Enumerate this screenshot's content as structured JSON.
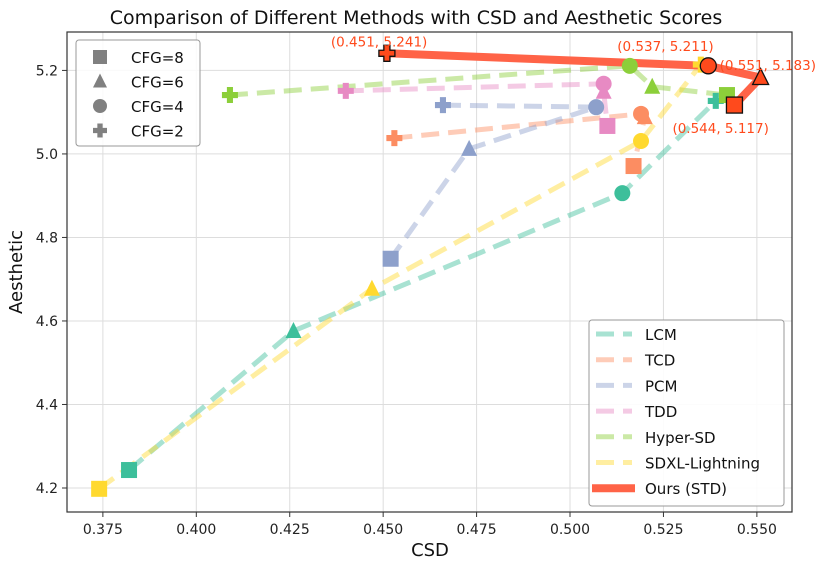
{
  "chart_data": {
    "type": "scatter",
    "title": "Comparison of Different Methods with CSD and Aesthetic Scores",
    "xlabel": "CSD",
    "ylabel": "Aesthetic",
    "xlim": [
      0.3654,
      0.5594
    ],
    "ylim": [
      4.1425,
      5.292
    ],
    "xticks": [
      0.375,
      0.4,
      0.425,
      0.45,
      0.475,
      0.5,
      0.525,
      0.55
    ],
    "xtick_labels": [
      "0.375",
      "0.400",
      "0.425",
      "0.450",
      "0.475",
      "0.500",
      "0.525",
      "0.550"
    ],
    "yticks": [
      4.2,
      4.4,
      4.6,
      4.8,
      5.0,
      5.2
    ],
    "ytick_labels": [
      "4.2",
      "4.4",
      "4.6",
      "4.8",
      "5.0",
      "5.2"
    ],
    "grid": true,
    "marker_legend": {
      "placement": "top-left",
      "entries": [
        {
          "label": "CFG=8",
          "marker": "square"
        },
        {
          "label": "CFG=6",
          "marker": "triangle"
        },
        {
          "label": "CFG=4",
          "marker": "circle"
        },
        {
          "label": "CFG=2",
          "marker": "plus"
        }
      ]
    },
    "series_legend_placement": "bottom-right",
    "series": [
      {
        "name": "LCM",
        "color": "#3dbf9b",
        "line_style": "dashed",
        "points": [
          {
            "cfg": 8,
            "x": 0.382,
            "y": 4.243
          },
          {
            "cfg": 6,
            "x": 0.426,
            "y": 4.576
          },
          {
            "cfg": 4,
            "x": 0.514,
            "y": 4.906
          },
          {
            "cfg": 2,
            "x": 0.539,
            "y": 5.127
          }
        ]
      },
      {
        "name": "TCD",
        "color": "#fc8d62",
        "line_style": "dashed",
        "points": [
          {
            "cfg": 2,
            "x": 0.453,
            "y": 5.038
          },
          {
            "cfg": 4,
            "x": 0.519,
            "y": 5.096
          },
          {
            "cfg": 6,
            "x": 0.52,
            "y": 5.088
          },
          {
            "cfg": 8,
            "x": 0.517,
            "y": 4.971
          }
        ]
      },
      {
        "name": "PCM",
        "color": "#8da0cb",
        "line_style": "dashed",
        "points": [
          {
            "cfg": 2,
            "x": 0.466,
            "y": 5.117
          },
          {
            "cfg": 4,
            "x": 0.507,
            "y": 5.112
          },
          {
            "cfg": 6,
            "x": 0.473,
            "y": 5.012
          },
          {
            "cfg": 8,
            "x": 0.452,
            "y": 4.749
          }
        ]
      },
      {
        "name": "TDD",
        "color": "#e78ac3",
        "line_style": "dashed",
        "points": [
          {
            "cfg": 2,
            "x": 0.44,
            "y": 5.151
          },
          {
            "cfg": 4,
            "x": 0.509,
            "y": 5.168
          },
          {
            "cfg": 6,
            "x": 0.509,
            "y": 5.149
          },
          {
            "cfg": 8,
            "x": 0.51,
            "y": 5.067
          }
        ]
      },
      {
        "name": "Hyper-SD",
        "color": "#8ccf3a",
        "line_style": "dashed",
        "points": [
          {
            "cfg": 2,
            "x": 0.409,
            "y": 5.141
          },
          {
            "cfg": 4,
            "x": 0.516,
            "y": 5.211
          },
          {
            "cfg": 6,
            "x": 0.522,
            "y": 5.161
          },
          {
            "cfg": 8,
            "x": 0.542,
            "y": 5.141
          }
        ]
      },
      {
        "name": "SDXL-Lightning",
        "color": "#ffd92f",
        "line_style": "dashed",
        "points": [
          {
            "cfg": 8,
            "x": 0.374,
            "y": 4.198
          },
          {
            "cfg": 6,
            "x": 0.447,
            "y": 4.677
          },
          {
            "cfg": 4,
            "x": 0.519,
            "y": 5.031
          },
          {
            "cfg": 2,
            "x": 0.535,
            "y": 5.214
          }
        ]
      },
      {
        "name": "Ours (STD)",
        "color": "#ff6347",
        "marker_color": "#ff4a1c",
        "line_style": "solid",
        "points": [
          {
            "cfg": 2,
            "x": 0.451,
            "y": 5.241
          },
          {
            "cfg": 4,
            "x": 0.537,
            "y": 5.211
          },
          {
            "cfg": 6,
            "x": 0.551,
            "y": 5.183
          },
          {
            "cfg": 8,
            "x": 0.544,
            "y": 5.117
          }
        ]
      }
    ],
    "annotations": [
      "(0.451, 5.241)",
      "(0.537, 5.211)",
      "(0.551, 5.183)",
      "(0.544, 5.117)"
    ]
  }
}
